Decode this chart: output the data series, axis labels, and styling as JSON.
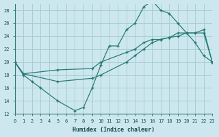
{
  "xlabel": "Humidex (Indice chaleur)",
  "bg_color": "#cce8ee",
  "grid_color": "#aaccd4",
  "line_color": "#2a7a72",
  "xlim": [
    0,
    23
  ],
  "ylim": [
    12,
    29
  ],
  "xticks": [
    0,
    1,
    2,
    3,
    4,
    5,
    6,
    7,
    8,
    9,
    10,
    11,
    12,
    13,
    14,
    15,
    16,
    17,
    18,
    19,
    20,
    21,
    22,
    23
  ],
  "yticks": [
    12,
    14,
    16,
    18,
    20,
    22,
    24,
    26,
    28
  ],
  "line1_x": [
    0,
    1,
    2,
    3,
    5,
    7,
    8,
    9,
    10,
    11,
    12,
    13,
    14,
    15,
    16,
    17,
    18,
    19,
    20,
    21,
    22,
    23
  ],
  "line1_y": [
    20,
    18,
    17,
    16,
    14,
    12.5,
    13,
    16,
    19.5,
    22.5,
    22.5,
    25,
    26,
    28.5,
    29.5,
    28,
    27.5,
    26,
    24.5,
    23,
    21,
    20
  ],
  "line2_x": [
    0,
    1,
    5,
    9,
    10,
    13,
    14,
    15,
    16,
    17,
    18,
    19,
    20,
    21,
    22,
    23
  ],
  "line2_y": [
    20,
    18.2,
    18.8,
    19,
    20,
    21.5,
    22,
    23,
    23.5,
    23.5,
    23.8,
    24,
    24.5,
    24.5,
    24.5,
    20
  ],
  "line3_x": [
    0,
    1,
    5,
    9,
    10,
    13,
    14,
    15,
    16,
    17,
    18,
    19,
    20,
    21,
    22,
    23
  ],
  "line3_y": [
    20,
    18.2,
    17,
    17.5,
    18,
    20,
    21,
    22,
    23,
    23.5,
    23.8,
    24.5,
    24.5,
    24.5,
    25,
    20
  ]
}
